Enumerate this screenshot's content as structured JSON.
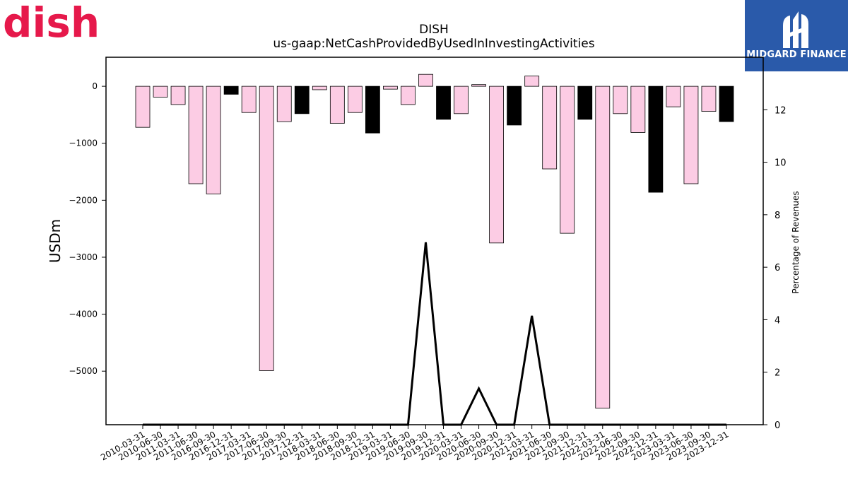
{
  "header": {
    "company_logo_text": "dish",
    "brand_name": "MIDGARD FINANCE"
  },
  "colors": {
    "brand_red": "#e6194b",
    "brand_blue": "#2a5aaa",
    "bar_default": "#fccce4",
    "bar_highlight": "#000000",
    "line": "#000000"
  },
  "chart_data": {
    "type": "bar",
    "title": "DISH",
    "subtitle": "us-gaap:NetCashProvidedByUsedInInvestingActivities",
    "ylabel": "USDm",
    "y2label": "Percentage of Revenues",
    "ylim": [
      -5940,
      510
    ],
    "y2lim": [
      0,
      14
    ],
    "yticks": [
      0,
      -1000,
      -2000,
      -3000,
      -4000,
      -5000
    ],
    "y2ticks": [
      0,
      2,
      4,
      6,
      8,
      10,
      12
    ],
    "grid": false,
    "legend": "none",
    "categories": [
      "2010-03-31",
      "2010-06-30",
      "2011-03-31",
      "2011-06-30",
      "2016-09-30",
      "2016-12-31",
      "2017-03-31",
      "2017-06-30",
      "2017-09-30",
      "2017-12-31",
      "2018-03-31",
      "2018-06-30",
      "2018-09-30",
      "2018-12-31",
      "2019-03-31",
      "2019-06-30",
      "2019-09-30",
      "2019-12-31",
      "2020-03-31",
      "2020-06-30",
      "2020-09-30",
      "2020-12-31",
      "2021-03-31",
      "2021-06-30",
      "2021-09-30",
      "2021-12-31",
      "2022-03-31",
      "2022-06-30",
      "2022-09-30",
      "2022-12-31",
      "2023-03-31",
      "2023-06-30",
      "2023-09-30",
      "2023-12-31"
    ],
    "values": [
      -720,
      -190,
      -320,
      -1710,
      -1890,
      -140,
      -460,
      -4990,
      -620,
      -480,
      -60,
      -650,
      -460,
      -820,
      -50,
      -320,
      210,
      -580,
      -480,
      30,
      -2750,
      -680,
      180,
      -1450,
      -2580,
      -580,
      -5650,
      -480,
      -810,
      -1860,
      -360,
      -1710,
      -440,
      -620
    ],
    "highlight": [
      false,
      false,
      false,
      false,
      false,
      true,
      false,
      false,
      false,
      true,
      false,
      false,
      false,
      true,
      false,
      false,
      false,
      true,
      false,
      false,
      false,
      true,
      false,
      false,
      false,
      true,
      false,
      false,
      false,
      true,
      false,
      false,
      false,
      true
    ],
    "line_series": {
      "values": [
        0,
        0,
        0,
        0,
        0,
        0,
        0,
        0,
        0,
        0,
        0,
        0,
        0,
        0,
        0,
        0,
        6.95,
        0,
        0,
        1.38,
        0,
        0,
        4.15,
        0,
        0,
        0,
        0,
        0,
        0,
        0,
        0,
        0,
        0,
        0
      ]
    }
  }
}
